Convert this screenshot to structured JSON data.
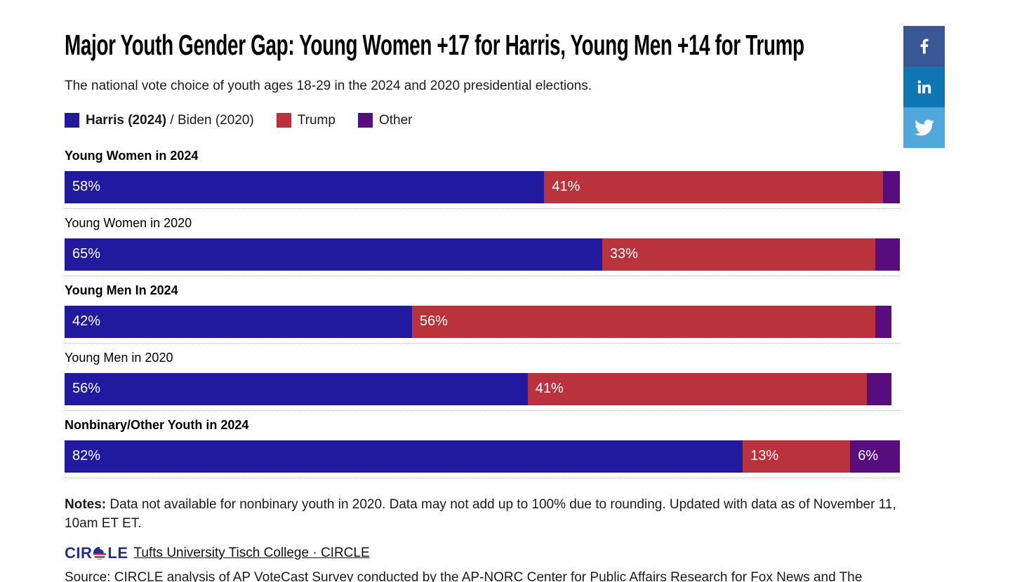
{
  "header": {
    "title": "Major Youth Gender Gap: Young Women +17 for Harris, Young Men +14 for Trump",
    "subtitle": "The national vote choice of youth ages 18-29 in the 2024 and 2020 presidential elections."
  },
  "legend": {
    "harris_bold": "Harris (2024)",
    "harris_rest": " / Biden (2020)",
    "trump": "Trump",
    "other": "Other"
  },
  "colors": {
    "harris": "#211A9E",
    "trump": "#B9323C",
    "other": "#570D7E",
    "facebook": "#3A5795",
    "linkedin": "#0E77B3",
    "twitter": "#4EA8DB",
    "logo_navy": "#2A2F8F"
  },
  "chart_data": {
    "type": "bar",
    "orientation": "horizontal",
    "stacked": true,
    "title": "Major Youth Gender Gap: Young Women +17 for Harris, Young Men +14 for Trump",
    "subtitle": "The national vote choice of youth ages 18-29 in the 2024 and 2020 presidential elections.",
    "series_names": [
      "Harris (2024) / Biden (2020)",
      "Trump",
      "Other"
    ],
    "axis_total": 101,
    "unit": "%",
    "rows": [
      {
        "label": "Young Women in 2024",
        "emphasis": true,
        "values": [
          58,
          41,
          2
        ],
        "value_labels": [
          "58%",
          "41%",
          ""
        ]
      },
      {
        "label": "Young Women in 2020",
        "emphasis": false,
        "values": [
          65,
          33,
          3
        ],
        "value_labels": [
          "65%",
          "33%",
          ""
        ]
      },
      {
        "label": "Young Men In 2024",
        "emphasis": true,
        "values": [
          42,
          56,
          2
        ],
        "value_labels": [
          "42%",
          "56%",
          ""
        ]
      },
      {
        "label": "Young Men in 2020",
        "emphasis": false,
        "values": [
          56,
          41,
          3
        ],
        "value_labels": [
          "56%",
          "41%",
          ""
        ]
      },
      {
        "label": "Nonbinary/Other Youth in 2024",
        "emphasis": true,
        "values": [
          82,
          13,
          6
        ],
        "value_labels": [
          "82%",
          "13%",
          "6%"
        ]
      }
    ]
  },
  "notes": {
    "label": "Notes:",
    "text": " Data not available for nonbinary youth in 2020. Data may not add up to 100% due to rounding. Updated with data as of November 11, 10am ET ET."
  },
  "footer": {
    "logo_left": "CIR",
    "logo_right": "LE",
    "link": "Tufts University Tisch College · CIRCLE",
    "source": "Source: CIRCLE analysis of AP VoteCast Survey conducted by the AP-NORC Center for Public Affairs Research for Fox News and The Associated Press."
  },
  "social": {
    "facebook": "Share on Facebook",
    "linkedin": "Share on LinkedIn",
    "twitter": "Share on Twitter"
  }
}
